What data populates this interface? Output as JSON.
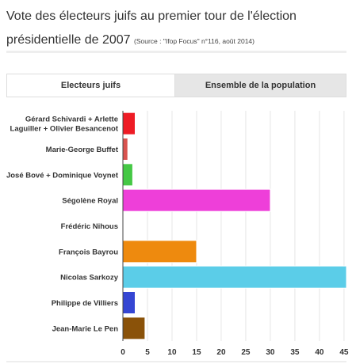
{
  "header": {
    "title_main": "Vote des électeurs juifs au premier tour de l'élection présidentielle de 2007",
    "title_source": "(Source : \"Ifop Focus\" n°116, août 2014)"
  },
  "tabs": [
    {
      "label": "Electeurs juifs",
      "active": true
    },
    {
      "label": "Ensemble de la population",
      "active": false
    }
  ],
  "chart_data": {
    "type": "bar",
    "orientation": "horizontal",
    "categories": [
      [
        "Gérard Schivardi + Arlette",
        "Laguiller + Olivier Besancenot"
      ],
      [
        "Marie-George Buffet"
      ],
      [
        "José Bové + Dominique Voynet"
      ],
      [
        "Ségolène Royal"
      ],
      [
        "Frédéric Nihous"
      ],
      [
        "François Bayrou"
      ],
      [
        "Nicolas Sarkozy"
      ],
      [
        "Philippe de Villiers"
      ],
      [
        "Jean-Marie Le Pen"
      ]
    ],
    "values": [
      2.5,
      1,
      2,
      30,
      0,
      15,
      48,
      2.5,
      4.5
    ],
    "colors": [
      "#ee1c25",
      "#d9534f",
      "#45c845",
      "#ee3fd9",
      "#999999",
      "#ee8a0e",
      "#5bcde8",
      "#3546d3",
      "#8a5209"
    ],
    "xticks": [
      0,
      5,
      10,
      15,
      20,
      25,
      30,
      35,
      40,
      45
    ],
    "xlim": [
      0,
      45.5
    ],
    "grid": true,
    "title": "",
    "xlabel": "",
    "ylabel": ""
  }
}
